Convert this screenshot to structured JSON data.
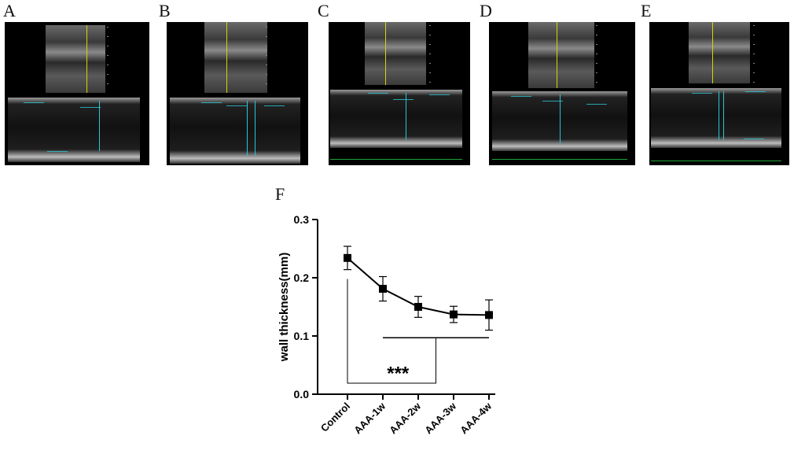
{
  "panels": [
    {
      "letter": "A"
    },
    {
      "letter": "B"
    },
    {
      "letter": "C"
    },
    {
      "letter": "D"
    },
    {
      "letter": "E"
    }
  ],
  "chart_letter": "F",
  "chart_data": {
    "type": "line",
    "title": "",
    "xlabel": "",
    "ylabel": "wall thickness(mm)",
    "categories": [
      "Control",
      "AAA-1w",
      "AAA-2w",
      "AAA-3w",
      "AAA-4w"
    ],
    "values": [
      0.234,
      0.181,
      0.15,
      0.137,
      0.136
    ],
    "errors": [
      0.02,
      0.021,
      0.018,
      0.014,
      0.026
    ],
    "ylim": [
      0.0,
      0.3
    ],
    "yticks": [
      "0.0",
      "0.1",
      "0.2",
      "0.3"
    ],
    "significance": "***",
    "marker": "square",
    "color": "#000000"
  }
}
